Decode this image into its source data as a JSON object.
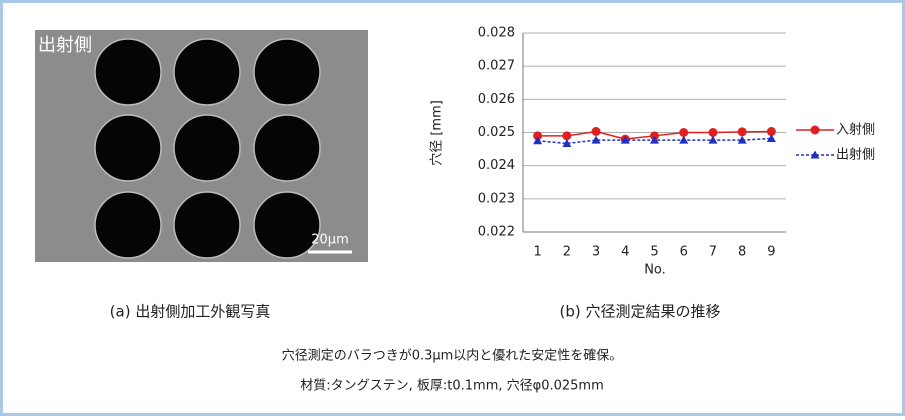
{
  "image": {
    "label": "出射側",
    "scale_bar": "20μm"
  },
  "captions": {
    "a": "(a) 出射側加工外観写真",
    "b": "(b) 穴径測定結果の推移",
    "note1": "穴径測定のバラつきが0.3μm以内と優れた安定性を確保。",
    "note2": "材質:タングステン, 板厚:t0.1mm, 穴径φ0.025mm"
  },
  "chart_data": {
    "type": "line",
    "ylabel": "穴径 [mm]",
    "xlabel": "No.",
    "categories": [
      "1",
      "2",
      "3",
      "4",
      "5",
      "6",
      "7",
      "8",
      "9"
    ],
    "series": [
      {
        "name": "入射側",
        "color": "#e02020",
        "marker": "circle",
        "values": [
          0.0249,
          0.0249,
          0.02503,
          0.0248,
          0.0249,
          0.025,
          0.025,
          0.02502,
          0.02503
        ]
      },
      {
        "name": "出射側",
        "color": "#2030c0",
        "marker": "triangle",
        "dashed": true,
        "values": [
          0.02475,
          0.02467,
          0.02477,
          0.02477,
          0.02477,
          0.02477,
          0.02477,
          0.02477,
          0.02482
        ]
      }
    ],
    "ylim": [
      0.022,
      0.028
    ],
    "yticks": [
      0.022,
      0.023,
      0.024,
      0.025,
      0.026,
      0.027,
      0.028
    ],
    "grid": true,
    "legend": "right"
  }
}
